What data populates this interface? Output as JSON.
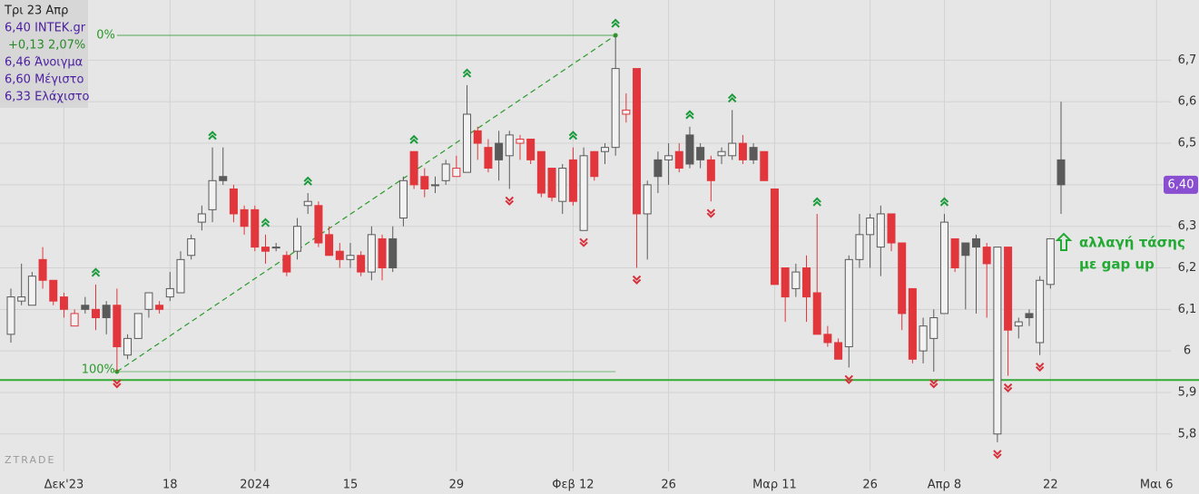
{
  "chart_data": {
    "type": "candlestick",
    "info": [
      "Τρι 23 Απρ",
      "6,40 INTEK.gr",
      "+0,13 2,07%",
      "6,46 Άνοιγμα",
      "6,60 Μέγιστο",
      "6,33 Ελάχιστο"
    ],
    "info_colors": [
      "#222222",
      "#4b1fa0",
      "#2a8a2a",
      "#4b1fa0",
      "#4b1fa0",
      "#4b1fa0"
    ],
    "watermark": "ZTRADE",
    "categories": [
      null,
      null,
      null,
      null,
      null,
      "Δεκ'23",
      null,
      null,
      null,
      null,
      null,
      null,
      null,
      null,
      null,
      "18",
      null,
      null,
      null,
      null,
      null,
      null,
      null,
      "2024",
      null,
      null,
      null,
      null,
      null,
      null,
      null,
      null,
      "15",
      null,
      null,
      null,
      null,
      null,
      null,
      null,
      null,
      null,
      "29",
      null,
      null,
      null,
      null,
      null,
      null,
      null,
      null,
      null,
      null,
      "Φεβ 12",
      null,
      null,
      null,
      null,
      null,
      null,
      null,
      null,
      "26",
      null,
      null,
      null,
      null,
      null,
      null,
      null,
      null,
      null,
      "Μαρ 11",
      null,
      null,
      null,
      null,
      null,
      null,
      null,
      null,
      "26",
      null,
      null,
      null,
      null,
      null,
      null,
      "Απρ 8",
      null,
      null,
      null,
      null,
      null,
      null,
      null,
      null,
      null,
      "22",
      null,
      null,
      null,
      null,
      null,
      null,
      null,
      null,
      null,
      "Μαι 6"
    ],
    "ohlc": {
      "open": [
        6.04,
        6.12,
        6.11,
        6.22,
        6.17,
        6.13,
        6.06,
        6.11,
        6.1,
        6.11,
        6.11,
        5.99,
        6.03,
        6.1,
        6.11,
        6.13,
        6.14,
        6.23,
        6.31,
        6.34,
        6.42,
        6.39,
        6.34,
        6.34,
        6.25,
        6.25,
        6.23,
        6.24,
        6.35,
        6.35,
        6.28,
        6.24,
        6.22,
        6.23,
        6.19,
        6.27,
        6.27,
        6.32,
        6.48,
        6.42,
        6.4,
        6.41,
        6.42,
        6.43,
        6.53,
        6.49,
        6.5,
        6.47,
        6.5,
        6.51,
        6.48,
        6.44,
        6.36,
        6.46,
        6.29,
        6.48,
        6.48,
        6.49,
        6.57,
        6.68,
        6.33,
        6.46,
        6.46,
        6.48,
        6.52,
        6.49,
        6.46,
        6.47,
        6.47,
        6.5,
        6.49,
        6.48,
        6.39,
        6.2,
        6.15,
        6.2,
        6.14,
        6.04,
        6.02,
        6.01,
        6.22,
        6.28,
        6.25,
        6.33,
        6.26,
        6.15,
        6.0,
        6.03,
        6.09,
        6.27,
        6.26,
        6.27,
        6.25,
        5.8,
        6.25,
        6.06,
        6.09,
        6.02,
        6.16,
        6.46,
        null,
        null,
        null,
        null,
        null,
        null,
        null,
        null,
        null
      ],
      "high": [
        6.15,
        6.21,
        6.19,
        6.25,
        6.17,
        6.14,
        6.1,
        6.13,
        6.16,
        6.12,
        6.15,
        6.04,
        6.09,
        6.14,
        6.12,
        6.19,
        6.24,
        6.28,
        6.35,
        6.49,
        6.49,
        6.4,
        6.35,
        6.35,
        6.28,
        6.26,
        6.24,
        6.32,
        6.38,
        6.36,
        6.3,
        6.26,
        6.26,
        6.24,
        6.3,
        6.28,
        6.3,
        6.42,
        6.48,
        6.44,
        6.42,
        6.46,
        6.47,
        6.64,
        6.54,
        6.51,
        6.53,
        6.53,
        6.52,
        6.51,
        6.48,
        6.44,
        6.45,
        6.49,
        6.49,
        6.48,
        6.5,
        6.76,
        6.62,
        6.68,
        6.41,
        6.48,
        6.5,
        6.5,
        6.54,
        6.5,
        6.47,
        6.49,
        6.58,
        6.52,
        6.5,
        6.48,
        6.39,
        6.2,
        6.21,
        6.23,
        6.33,
        6.06,
        6.03,
        6.23,
        6.33,
        6.33,
        6.35,
        6.33,
        6.26,
        6.15,
        6.08,
        6.1,
        6.33,
        6.27,
        6.26,
        6.28,
        6.26,
        6.25,
        6.25,
        6.08,
        6.1,
        6.18,
        6.27,
        6.6,
        null,
        null,
        null,
        null,
        null,
        null,
        null,
        null,
        null
      ],
      "low": [
        6.02,
        6.11,
        6.11,
        6.15,
        6.11,
        6.08,
        6.06,
        6.09,
        6.05,
        6.04,
        5.95,
        5.98,
        6.03,
        6.08,
        6.09,
        6.12,
        6.14,
        6.22,
        6.29,
        6.31,
        6.4,
        6.31,
        6.28,
        6.24,
        6.21,
        6.24,
        6.18,
        6.22,
        6.33,
        6.25,
        6.23,
        6.2,
        6.2,
        6.18,
        6.17,
        6.17,
        6.19,
        6.3,
        6.39,
        6.37,
        6.38,
        6.4,
        6.42,
        6.43,
        6.46,
        6.43,
        6.41,
        6.39,
        6.46,
        6.45,
        6.37,
        6.36,
        6.33,
        6.35,
        6.29,
        6.41,
        6.45,
        6.47,
        6.55,
        6.2,
        6.22,
        6.38,
        6.4,
        6.43,
        6.44,
        6.44,
        6.36,
        6.45,
        6.46,
        6.45,
        6.45,
        6.41,
        6.16,
        6.07,
        6.13,
        6.07,
        6.04,
        6.01,
        5.98,
        5.96,
        6.2,
        6.2,
        6.18,
        6.24,
        6.05,
        5.97,
        5.97,
        5.95,
        6.09,
        6.19,
        6.1,
        6.09,
        6.08,
        5.78,
        5.94,
        6.03,
        6.06,
        5.99,
        6.15,
        6.33,
        null,
        null,
        null,
        null,
        null,
        null,
        null,
        null,
        null
      ],
      "close": [
        6.13,
        6.13,
        6.18,
        6.17,
        6.12,
        6.1,
        6.09,
        6.1,
        6.08,
        6.08,
        6.01,
        6.03,
        6.09,
        6.14,
        6.1,
        6.15,
        6.22,
        6.27,
        6.33,
        6.41,
        6.41,
        6.33,
        6.3,
        6.25,
        6.24,
        6.25,
        6.19,
        6.3,
        6.36,
        6.26,
        6.23,
        6.22,
        6.23,
        6.19,
        6.28,
        6.2,
        6.2,
        6.41,
        6.4,
        6.39,
        6.4,
        6.45,
        6.44,
        6.57,
        6.5,
        6.44,
        6.46,
        6.52,
        6.51,
        6.46,
        6.38,
        6.37,
        6.44,
        6.36,
        6.47,
        6.42,
        6.49,
        6.68,
        6.58,
        6.33,
        6.4,
        6.42,
        6.47,
        6.44,
        6.45,
        6.46,
        6.41,
        6.48,
        6.5,
        6.46,
        6.46,
        6.41,
        6.16,
        6.13,
        6.19,
        6.13,
        6.04,
        6.02,
        5.98,
        6.22,
        6.28,
        6.32,
        6.33,
        6.26,
        6.09,
        5.98,
        6.06,
        6.08,
        6.31,
        6.2,
        6.23,
        6.25,
        6.21,
        6.25,
        6.05,
        6.07,
        6.08,
        6.17,
        6.27,
        6.4,
        null,
        null,
        null,
        null,
        null,
        null,
        null,
        null,
        null
      ]
    },
    "hollow_color": "#f2f2f2",
    "rise_color": "#5a5a5a",
    "fall_color": "#e0363c",
    "ylim": [
      5.71,
      6.845
    ],
    "yticks": [
      {
        "value": 5.8,
        "label": "5,8"
      },
      {
        "value": 5.9,
        "label": "5,9"
      },
      6,
      {
        "value": 6.1,
        "label": "6,1"
      },
      {
        "value": 6.2,
        "label": "6,2"
      },
      {
        "value": 6.3,
        "label": "6,3"
      },
      {
        "value": 6.4,
        "label": "6,4"
      },
      {
        "value": 6.5,
        "label": "6,5"
      },
      {
        "value": 6.6,
        "label": "6,6"
      },
      {
        "value": 6.7,
        "label": "6,7"
      }
    ],
    "grid": true,
    "last_label": "6,40",
    "last_label_color": "#8a4fd0",
    "swing_highs": [
      8,
      19,
      24,
      28,
      38,
      43,
      53,
      57,
      64,
      68,
      76,
      88
    ],
    "swing_lows": [
      10,
      47,
      54,
      59,
      66,
      79,
      87,
      93,
      94,
      97
    ],
    "swing_high_color": "#1a9a3a",
    "swing_low_color": "#d8303a",
    "support_line": {
      "value": 5.93,
      "color": "#33aa33"
    },
    "fibonacci": {
      "from": 10,
      "to": 57,
      "labels": [
        "100%",
        "0%"
      ],
      "color": "#2a9a2a"
    },
    "annotation": {
      "lines": [
        "αλλαγή τάσης",
        "με gap up"
      ],
      "color": "#22aa33"
    }
  }
}
